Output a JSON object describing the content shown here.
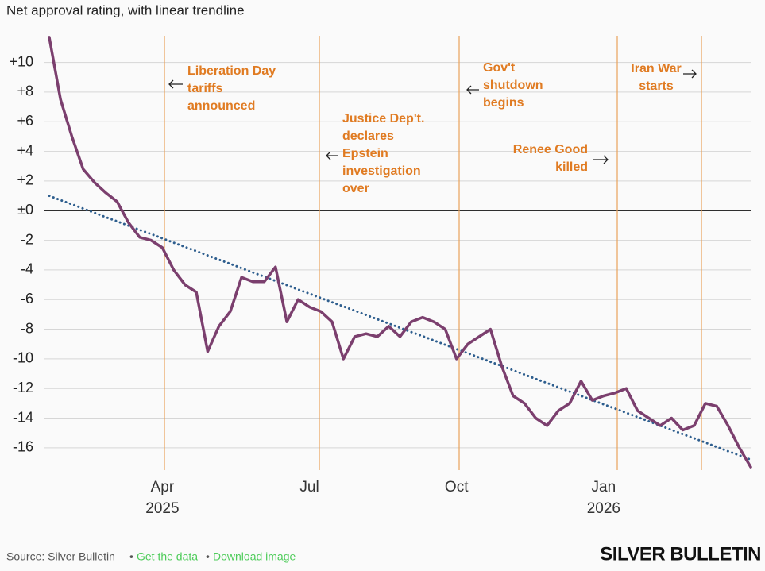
{
  "chart_data": {
    "type": "line",
    "title": "Net approval rating, with linear trendline",
    "categories": [
      null,
      null,
      null,
      null,
      null,
      null,
      null,
      null,
      null,
      null,
      "Apr",
      null,
      null,
      null,
      null,
      null,
      null,
      null,
      null,
      null,
      null,
      null,
      null,
      "Jul",
      null,
      null,
      null,
      null,
      null,
      null,
      null,
      null,
      null,
      null,
      null,
      null,
      "Oct",
      null,
      null,
      null,
      null,
      null,
      null,
      null,
      null,
      null,
      null,
      null,
      null,
      "Jan",
      null,
      null,
      null,
      null,
      null,
      null,
      null,
      null,
      null,
      null,
      null,
      null,
      null
    ],
    "year_labels": [
      null,
      null,
      null,
      null,
      null,
      null,
      null,
      null,
      null,
      null,
      "2025",
      null,
      null,
      null,
      null,
      null,
      null,
      null,
      null,
      null,
      null,
      null,
      null,
      null,
      null,
      null,
      null,
      null,
      null,
      null,
      null,
      null,
      null,
      null,
      null,
      null,
      null,
      null,
      null,
      null,
      null,
      null,
      null,
      null,
      null,
      null,
      null,
      null,
      null,
      "2026",
      null,
      null,
      null,
      null,
      null,
      null,
      null,
      null,
      null,
      null,
      null,
      null,
      null
    ],
    "series": [
      {
        "color": "#7b3f6e",
        "style": "solid",
        "values": [
          11.7,
          7.5,
          5.0,
          2.8,
          1.9,
          1.2,
          0.6,
          -0.8,
          -1.8,
          -2.0,
          -2.5,
          -4.0,
          -5.0,
          -5.5,
          -9.5,
          -7.8,
          -6.8,
          -4.5,
          -4.8,
          -4.8,
          -3.8,
          -7.5,
          -6.0,
          -6.5,
          -6.8,
          -7.5,
          -10.0,
          -8.5,
          -8.3,
          -8.5,
          -7.8,
          -8.5,
          -7.5,
          -7.2,
          -7.5,
          -8.0,
          -10.0,
          -9.0,
          -8.5,
          -8.0,
          -10.5,
          -12.5,
          -13.0,
          -14.0,
          -14.5,
          -13.5,
          -13.0,
          -11.5,
          -12.8,
          -12.5,
          -12.3,
          -12.0,
          -13.5,
          -14.0,
          -14.5,
          -14.0,
          -14.8,
          -14.5,
          -13.0,
          -13.2,
          -14.5,
          -16.0,
          -17.3
        ]
      },
      {
        "color": "#2e5e8e",
        "style": "dotted",
        "values": [
          1.0,
          0.71,
          0.43,
          0.14,
          -0.15,
          -0.44,
          -0.72,
          -1.01,
          -1.3,
          -1.58,
          -1.87,
          -2.16,
          -2.45,
          -2.73,
          -3.02,
          -3.31,
          -3.59,
          -3.88,
          -4.17,
          -4.45,
          -4.74,
          -5.03,
          -5.32,
          -5.6,
          -5.89,
          -6.18,
          -6.46,
          -6.75,
          -7.04,
          -7.33,
          -7.61,
          -7.9,
          -8.19,
          -8.47,
          -8.76,
          -9.05,
          -9.34,
          -9.62,
          -9.91,
          -10.2,
          -10.48,
          -10.77,
          -11.06,
          -11.35,
          -11.63,
          -11.92,
          -12.21,
          -12.49,
          -12.78,
          -13.07,
          -13.35,
          -13.64,
          -13.93,
          -14.22,
          -14.5,
          -14.79,
          -15.08,
          -15.36,
          -15.65,
          -15.94,
          -16.23,
          -16.51,
          -16.8
        ]
      }
    ],
    "ylim": [
      -17.4,
      11.8
    ],
    "yticks": [
      -16,
      -14,
      -12,
      -10,
      -8,
      -6,
      -4,
      -2,
      {
        "value": 0,
        "label": "±0"
      },
      {
        "value": 2,
        "label": "+2"
      },
      {
        "value": 4,
        "label": "+4"
      },
      {
        "value": 6,
        "label": "+6"
      },
      {
        "value": 8,
        "label": "+8"
      },
      {
        "value": 10,
        "label": "+10"
      }
    ],
    "grid": true,
    "annotations": [
      {
        "lines": [
          "Liberation Day",
          "tariffs",
          "announced"
        ]
      },
      {
        "lines": [
          "Justice Dep't.",
          "declares",
          "Epstein",
          "investigation",
          "over"
        ]
      },
      {
        "lines": [
          "Gov't",
          "shutdown",
          "begins"
        ]
      },
      {
        "lines": [
          "Renee Good",
          "killed"
        ]
      },
      {
        "lines": [
          "Iran War",
          "starts"
        ]
      }
    ]
  },
  "footer": {
    "source": "Source: Silver Bulletin",
    "links": [
      "Get the data",
      "Download image"
    ],
    "logo": "SILVER BULLETIN"
  }
}
